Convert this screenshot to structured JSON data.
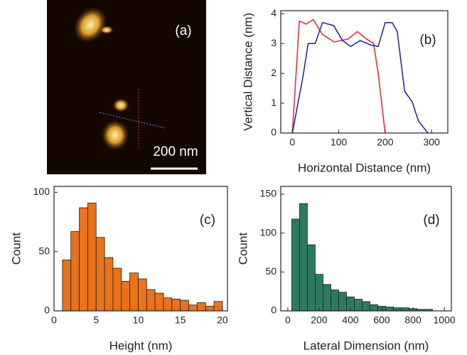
{
  "chart_data": [
    {
      "type": "image",
      "label": "(a)",
      "scale_bar": "200 nm"
    },
    {
      "type": "line",
      "label": "(b)",
      "x_label": "Horizontal Distance (nm)",
      "y_label": "Vertical Distance (nm)",
      "xlim": [
        -25,
        335
      ],
      "ylim": [
        0,
        4.1
      ],
      "xticks": [
        0,
        100,
        200,
        300
      ],
      "yticks": [
        0,
        1,
        2,
        3,
        4
      ],
      "series": [
        {
          "color": "#e0303a",
          "x": [
            0,
            15,
            30,
            45,
            65,
            90,
            120,
            140,
            160,
            175,
            185,
            200
          ],
          "values": [
            0,
            3.75,
            3.65,
            3.8,
            3.3,
            3.05,
            3.15,
            3.4,
            3.15,
            3.0,
            2.0,
            0
          ]
        },
        {
          "color": "#2a2a9a",
          "x": [
            0,
            23,
            34,
            49,
            65,
            89,
            108,
            126,
            146,
            169,
            185,
            200,
            215,
            226,
            242,
            258,
            272,
            292
          ],
          "values": [
            0,
            1.9,
            3.0,
            3.0,
            3.7,
            3.6,
            3.1,
            2.9,
            3.1,
            2.95,
            2.9,
            3.7,
            3.7,
            3.4,
            1.4,
            1.05,
            0.4,
            0
          ]
        }
      ]
    },
    {
      "type": "histogram",
      "label": "(c)",
      "x_label": "Height (nm)",
      "y_label": "Count",
      "color": "#e8731a",
      "xlim": [
        0,
        20.6
      ],
      "ylim": [
        0,
        105
      ],
      "xticks": [
        0,
        5,
        10,
        15,
        20
      ],
      "yticks": [
        0,
        50,
        100
      ],
      "bins": [
        1,
        2,
        3,
        4,
        5,
        6,
        7,
        8,
        9,
        10,
        11,
        12,
        13,
        14,
        15,
        16,
        17,
        18,
        19,
        20
      ],
      "counts": [
        43,
        67,
        87,
        91,
        62,
        45,
        36,
        25,
        32,
        27,
        18,
        15,
        11,
        10,
        9,
        5,
        7,
        4,
        8
      ]
    },
    {
      "type": "histogram",
      "label": "(d)",
      "x_label": "Lateral Dimension (nm)",
      "y_label": "Count",
      "color": "#2e7a5e",
      "xlim": [
        -45,
        1045
      ],
      "ylim": [
        0,
        160
      ],
      "xticks": [
        0,
        200,
        400,
        600,
        800,
        1000
      ],
      "yticks": [
        0,
        50,
        100,
        150
      ],
      "bins": [
        25,
        75,
        125,
        175,
        225,
        275,
        325,
        375,
        425,
        475,
        525,
        575,
        625,
        675,
        725,
        775,
        825,
        875,
        925
      ],
      "counts": [
        118,
        138,
        85,
        47,
        34,
        27,
        24,
        18,
        15,
        12,
        8,
        6,
        5,
        4,
        4,
        3,
        2,
        2
      ]
    }
  ]
}
